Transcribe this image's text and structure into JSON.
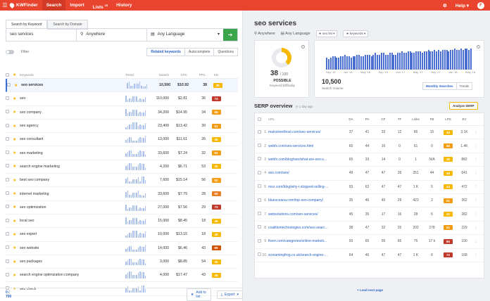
{
  "topbar": {
    "app_name": "KWFinder",
    "nav": [
      "Search",
      "Import",
      "Lists",
      "History"
    ],
    "lists_badge": "25",
    "help": "Help",
    "avatar": "F"
  },
  "search": {
    "tabs": [
      "Search by Keyword",
      "Search by Domain"
    ],
    "keyword_value": "seo services",
    "location": "Anywhere",
    "language": "Any Language",
    "go_icon": "arrow-right-icon"
  },
  "filter": {
    "label": "Filter",
    "subtabs": [
      "Related keywords",
      "Autocomplete",
      "Questions"
    ]
  },
  "kw_table": {
    "headers": [
      "Keywords",
      "Trend",
      "Search",
      "CPC",
      "PPC",
      "KD"
    ],
    "rows": [
      {
        "keyword": "seo services",
        "search": "10,500",
        "cpc": "$10.92",
        "ppc": "38",
        "kd": "38",
        "kd_color": "#f6b800"
      },
      {
        "keyword": "seo",
        "search": "110,000",
        "cpc": "$2.81",
        "ppc": "36",
        "kd": "74",
        "kd_color": "#c0392b"
      },
      {
        "keyword": "seo company",
        "search": "34,200",
        "cpc": "$14.95",
        "ppc": "34",
        "kd": "55",
        "kd_color": "#f39c12"
      },
      {
        "keyword": "seo agency",
        "search": "23,400",
        "cpc": "$13.42",
        "ppc": "39",
        "kd": "51",
        "kd_color": "#f39c12"
      },
      {
        "keyword": "seo consultant",
        "search": "13,000",
        "cpc": "$11.61",
        "ppc": "26",
        "kd": "45",
        "kd_color": "#f6b800"
      },
      {
        "keyword": "seo marketing",
        "search": "33,600",
        "cpc": "$7.24",
        "ppc": "32",
        "kd": "52",
        "kd_color": "#f39c12"
      },
      {
        "keyword": "search engine marketing",
        "search": "4,200",
        "cpc": "$6.71",
        "ppc": "53",
        "kd": "40",
        "kd_color": "#f6b800"
      },
      {
        "keyword": "best seo company",
        "search": "7,600",
        "cpc": "$15.14",
        "ppc": "56",
        "kd": "52",
        "kd_color": "#f39c12"
      },
      {
        "keyword": "internet marketing",
        "search": "33,600",
        "cpc": "$7.79",
        "ppc": "28",
        "kd": "60",
        "kd_color": "#e67e22"
      },
      {
        "keyword": "seo optimization",
        "search": "27,000",
        "cpc": "$7.56",
        "ppc": "29",
        "kd": "73",
        "kd_color": "#c0392b"
      },
      {
        "keyword": "local seo",
        "search": "15,000",
        "cpc": "$8.45",
        "ppc": "18",
        "kd": "46",
        "kd_color": "#f6b800"
      },
      {
        "keyword": "seo expert",
        "search": "10,000",
        "cpc": "$13.15",
        "ppc": "18",
        "kd": "48",
        "kd_color": "#f6b800"
      },
      {
        "keyword": "seo website",
        "search": "14,000",
        "cpc": "$6.46",
        "ppc": "43",
        "kd": "69",
        "kd_color": "#d35400"
      },
      {
        "keyword": "seo packages",
        "search": "3,000",
        "cpc": "$8.85",
        "ppc": "54",
        "kd": "45",
        "kd_color": "#f6b800"
      },
      {
        "keyword": "search engine optimization company",
        "search": "4,000",
        "cpc": "$17.47",
        "ppc": "43",
        "kd": "48",
        "kd_color": "#f6b800"
      },
      {
        "keyword": "seo check",
        "search": "",
        "cpc": "",
        "ppc": "",
        "kd": "",
        "kd_color": "#f6b800"
      }
    ]
  },
  "left_footer": {
    "count": "0 / 700",
    "add_to_list": "Add to list",
    "export": "Export"
  },
  "detail": {
    "title": "seo services",
    "location": "Anywhere",
    "language": "Any Language",
    "pill_list": "seo list",
    "pill_keywords": "keywords"
  },
  "kd_card": {
    "value": "38",
    "out_of": "/ 100",
    "word": "POSSIBLE",
    "label": "Keyword Difficulty",
    "donut_fill": 0.38
  },
  "volume_card": {
    "value": "10,500",
    "label": "Search Volume",
    "months": [
      "Sep '15",
      "Jan '16",
      "May '16",
      "Sep '16",
      "Jan '17",
      "May '17",
      "Sep '17",
      "Jan '18",
      "May '18"
    ],
    "tabs": [
      "Monthly Searches",
      "Trends"
    ],
    "chart_data": {
      "type": "bar",
      "values": [
        8,
        7,
        8,
        9,
        9,
        8,
        8,
        9,
        9,
        10,
        9,
        9,
        8,
        9,
        9,
        10,
        10,
        9,
        9,
        10,
        10,
        10,
        9,
        10,
        11,
        10,
        10,
        11,
        11,
        10,
        10,
        11,
        11,
        10,
        10,
        11,
        11,
        12,
        11,
        11,
        12,
        12,
        11,
        11,
        12,
        12,
        12,
        11,
        12,
        12,
        13,
        12,
        12,
        13,
        12,
        13,
        12,
        13,
        13,
        13,
        12,
        13,
        13,
        14,
        13,
        13,
        14,
        13,
        14,
        14,
        13,
        14
      ]
    }
  },
  "serp": {
    "title": "SERP overview",
    "age": "1 day ago",
    "analyze": "Analyze SERP",
    "headers": [
      "URL",
      "DA",
      "PA",
      "CF",
      "TF",
      "Links",
      "FB",
      "LPS",
      "EV"
    ],
    "rows": [
      {
        "n": "1",
        "url": "mainstreethost.com/seo-services/",
        "da": "37",
        "pa": "41",
        "cf": "33",
        "tf": "12",
        "links": "66",
        "fb": "15",
        "lps": "48",
        "lps_color": "#f6b800",
        "ev": "3.1K"
      },
      {
        "n": "2",
        "url": "webfx.com/seo-services.html",
        "da": "65",
        "pa": "44",
        "cf": "16",
        "tf": "0",
        "links": "61",
        "fb": "0",
        "lps": "55",
        "lps_color": "#f39c12",
        "ev": "1.4K"
      },
      {
        "n": "3",
        "url": "webfx.com/blog/seo/what-are-seo-s...",
        "da": "65",
        "pa": "33",
        "cf": "14",
        "tf": "0",
        "links": "1",
        "fb": "N/A",
        "lps": "38",
        "lps_color": "#f6b800",
        "ev": "882"
      },
      {
        "n": "4",
        "url": "seo.com/seo/",
        "da": "49",
        "pa": "47",
        "cf": "47",
        "tf": "39",
        "links": "351",
        "fb": "44",
        "lps": "48",
        "lps_color": "#f6b800",
        "ev": "641"
      },
      {
        "n": "5",
        "url": "moz.com/blog/why-i-stopped-selling-...",
        "da": "93",
        "pa": "62",
        "cf": "47",
        "tf": "47",
        "links": "1 K",
        "fb": "5",
        "lps": "44",
        "lps_color": "#f6b800",
        "ev": "472"
      },
      {
        "n": "6",
        "url": "blueoceana.com/top-seo-company/",
        "da": "35",
        "pa": "46",
        "cf": "45",
        "tf": "29",
        "links": "423",
        "fb": "2",
        "lps": "51",
        "lps_color": "#f39c12",
        "ev": "362"
      },
      {
        "n": "7",
        "url": "websolutions.com/seo-services/",
        "da": "45",
        "pa": "35",
        "cf": "17",
        "tf": "16",
        "links": "28",
        "fb": "6",
        "lps": "42",
        "lps_color": "#f6b800",
        "ev": "282"
      },
      {
        "n": "8",
        "url": "coalitiontechnologies.com/seo-searc...",
        "da": "38",
        "pa": "47",
        "cf": "32",
        "tf": "25",
        "links": "202",
        "fb": "278",
        "lps": "51",
        "lps_color": "#f39c12",
        "ev": "229"
      },
      {
        "n": "9",
        "url": "fiverr.com/categories/online-marketi...",
        "da": "93",
        "pa": "65",
        "cf": "55",
        "tf": "65",
        "links": "76",
        "fb": "17 k",
        "lps": "80",
        "lps_color": "#c0392b",
        "ev": "190"
      },
      {
        "n": "10",
        "url": "screamingfrog.co.uk/search-engine-...",
        "da": "64",
        "pa": "46",
        "cf": "47",
        "tf": "47",
        "links": "1 K",
        "fb": "6",
        "lps": "72",
        "lps_color": "#c0392b",
        "ev": "168"
      }
    ],
    "load_more": "Load next page"
  }
}
